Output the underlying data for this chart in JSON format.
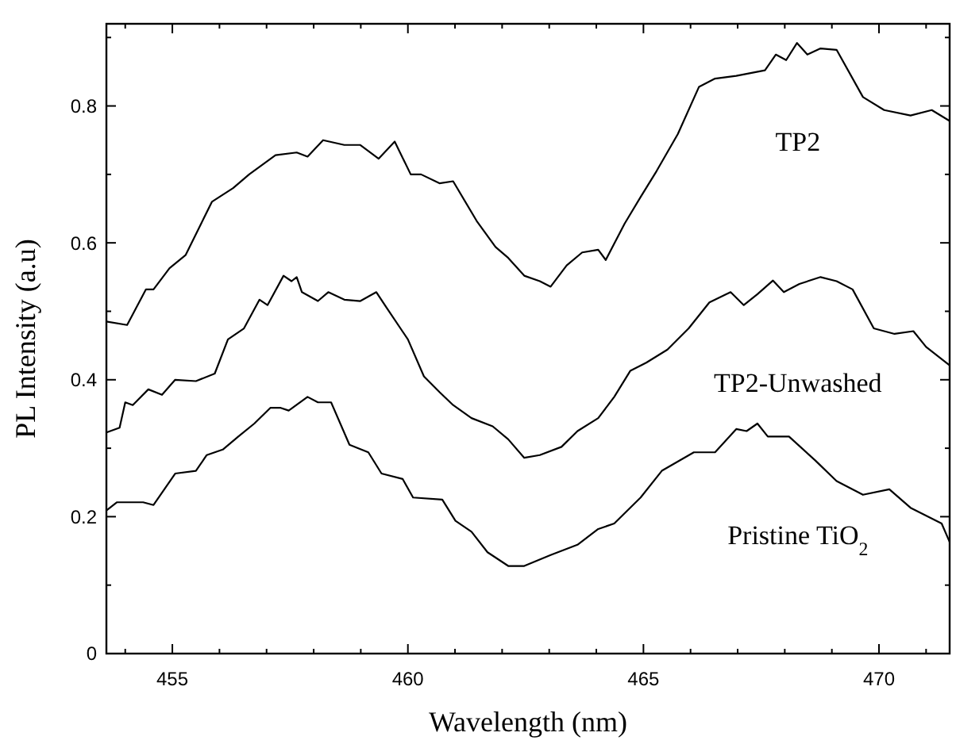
{
  "chart_data": {
    "type": "line",
    "xlabel": "Wavelength (nm)",
    "ylabel": "PL Intensity (a.u)",
    "xlim": [
      453.6,
      471.5
    ],
    "ylim": [
      0,
      0.92
    ],
    "xticks": [
      {
        "value": 454,
        "label": null
      },
      455,
      {
        "value": 456,
        "label": null
      },
      {
        "value": 457,
        "label": null
      },
      {
        "value": 458,
        "label": null
      },
      {
        "value": 459,
        "label": null
      },
      460,
      {
        "value": 461,
        "label": null
      },
      {
        "value": 462,
        "label": null
      },
      {
        "value": 463,
        "label": null
      },
      {
        "value": 464,
        "label": null
      },
      465,
      {
        "value": 466,
        "label": null
      },
      {
        "value": 467,
        "label": null
      },
      {
        "value": 468,
        "label": null
      },
      {
        "value": 469,
        "label": null
      },
      470,
      {
        "value": 471,
        "label": null
      }
    ],
    "yticks": [
      0,
      {
        "value": 0.1,
        "label": null
      },
      0.2,
      {
        "value": 0.3,
        "label": null
      },
      0.4,
      {
        "value": 0.5,
        "label": null
      },
      0.6,
      {
        "value": 0.7,
        "label": null
      },
      0.8,
      {
        "value": 0.9,
        "label": null
      }
    ],
    "grid": false,
    "marker": "none",
    "line_style": "solid",
    "series": [
      {
        "name": "TP2",
        "color": "#000000",
        "x": [
          453.6,
          454.04,
          454.44,
          454.6,
          454.94,
          455.28,
          455.84,
          456.29,
          456.63,
          457.19,
          457.64,
          457.87,
          458.2,
          458.65,
          458.99,
          459.38,
          459.72,
          460.06,
          460.28,
          460.67,
          460.96,
          461.46,
          461.86,
          462.13,
          462.47,
          462.8,
          463.03,
          463.37,
          463.7,
          464.04,
          464.2,
          464.6,
          464.94,
          465.28,
          465.73,
          466.18,
          466.52,
          466.97,
          467.58,
          467.81,
          468.03,
          468.26,
          468.48,
          468.76,
          469.1,
          469.66,
          470.11,
          470.67,
          471.12,
          471.5
        ],
        "values": [
          0.485,
          0.48,
          0.532,
          0.532,
          0.563,
          0.582,
          0.66,
          0.68,
          0.7,
          0.728,
          0.732,
          0.726,
          0.75,
          0.743,
          0.743,
          0.723,
          0.748,
          0.7,
          0.7,
          0.687,
          0.69,
          0.632,
          0.594,
          0.578,
          0.552,
          0.544,
          0.536,
          0.567,
          0.586,
          0.59,
          0.575,
          0.628,
          0.667,
          0.705,
          0.759,
          0.828,
          0.84,
          0.844,
          0.852,
          0.875,
          0.867,
          0.892,
          0.875,
          0.884,
          0.882,
          0.813,
          0.794,
          0.786,
          0.794,
          0.778
        ]
      },
      {
        "name": "TP2-Unwashed",
        "color": "#000000",
        "x": [
          453.6,
          453.88,
          454.0,
          454.16,
          454.49,
          454.78,
          455.06,
          455.5,
          455.9,
          456.18,
          456.52,
          456.85,
          457.02,
          457.36,
          457.53,
          457.64,
          457.75,
          458.09,
          458.31,
          458.65,
          458.99,
          459.33,
          459.55,
          460.0,
          460.34,
          460.67,
          460.96,
          461.35,
          461.8,
          462.13,
          462.47,
          462.8,
          463.26,
          463.6,
          464.04,
          464.38,
          464.72,
          465.06,
          465.51,
          465.96,
          466.4,
          466.85,
          467.13,
          467.42,
          467.75,
          467.98,
          468.31,
          468.76,
          469.1,
          469.44,
          469.89,
          470.33,
          470.73,
          471.0,
          471.5
        ],
        "values": [
          0.323,
          0.33,
          0.367,
          0.363,
          0.386,
          0.378,
          0.4,
          0.398,
          0.409,
          0.459,
          0.475,
          0.517,
          0.509,
          0.552,
          0.544,
          0.55,
          0.528,
          0.515,
          0.528,
          0.517,
          0.515,
          0.528,
          0.505,
          0.459,
          0.405,
          0.382,
          0.363,
          0.344,
          0.332,
          0.313,
          0.286,
          0.29,
          0.302,
          0.325,
          0.344,
          0.375,
          0.413,
          0.425,
          0.444,
          0.475,
          0.513,
          0.528,
          0.509,
          0.525,
          0.545,
          0.528,
          0.54,
          0.55,
          0.544,
          0.532,
          0.475,
          0.467,
          0.471,
          0.448,
          0.421
        ]
      },
      {
        "name": "Pristine TiO$_{2}$",
        "color": "#000000",
        "x": [
          453.6,
          453.82,
          454.38,
          454.6,
          455.06,
          455.5,
          455.73,
          456.07,
          456.4,
          456.74,
          457.08,
          457.3,
          457.47,
          457.87,
          458.09,
          458.37,
          458.76,
          459.16,
          459.44,
          459.89,
          460.11,
          460.73,
          461.01,
          461.35,
          461.69,
          462.13,
          462.47,
          463.03,
          463.6,
          464.04,
          464.38,
          464.94,
          465.39,
          466.07,
          466.52,
          466.97,
          467.19,
          467.42,
          467.64,
          468.09,
          468.65,
          469.1,
          469.66,
          470.22,
          470.67,
          471.33,
          471.5
        ],
        "values": [
          0.209,
          0.221,
          0.221,
          0.217,
          0.263,
          0.267,
          0.29,
          0.298,
          0.317,
          0.336,
          0.359,
          0.359,
          0.355,
          0.375,
          0.367,
          0.367,
          0.305,
          0.294,
          0.263,
          0.255,
          0.228,
          0.225,
          0.194,
          0.178,
          0.148,
          0.128,
          0.128,
          0.144,
          0.159,
          0.182,
          0.19,
          0.228,
          0.267,
          0.294,
          0.294,
          0.328,
          0.325,
          0.336,
          0.317,
          0.317,
          0.282,
          0.252,
          0.232,
          0.24,
          0.213,
          0.19,
          0.163
        ]
      }
    ]
  }
}
